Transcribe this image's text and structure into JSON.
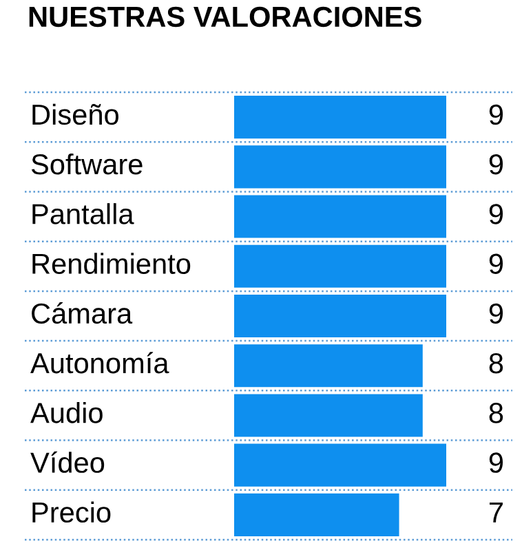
{
  "chart_data": {
    "type": "bar",
    "orientation": "horizontal",
    "title": "NUESTRAS VALORACIONES",
    "categories": [
      "Diseño",
      "Software",
      "Pantalla",
      "Rendimiento",
      "Cámara",
      "Autonomía",
      "Audio",
      "Vídeo",
      "Precio"
    ],
    "values": [
      9,
      9,
      9,
      9,
      9,
      8,
      8,
      9,
      7
    ],
    "color": "#0e8fef",
    "data_labels": true,
    "grid": "y"
  }
}
